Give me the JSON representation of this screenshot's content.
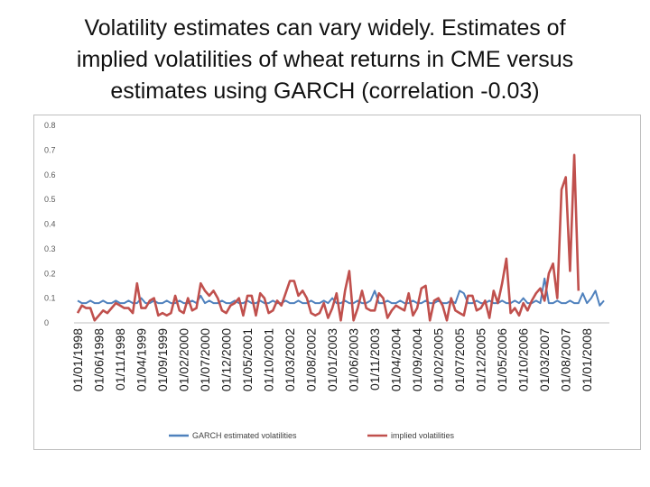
{
  "slide": {
    "title_lines": [
      "Volatility estimates can vary widely. Estimates of",
      "implied volatilities of wheat returns in  CME versus",
      "estimates using GARCH (correlation -0.03)"
    ]
  },
  "chart_data": {
    "type": "line",
    "title": "Volatility estimates can vary widely. Estimates of implied volatilities of wheat returns in  CME versus estimates using GARCH (correlation -0.03)",
    "xlabel": "",
    "ylabel": "",
    "ylim": [
      0,
      0.8
    ],
    "yticks": [
      0,
      0.1,
      0.2,
      0.3,
      0.4,
      0.5,
      0.6,
      0.7,
      0.8
    ],
    "ytick_labels": [
      "0",
      "0.1",
      "0.2",
      "0.3",
      "0.4",
      "0.5",
      "0.6",
      "0.7",
      "0.8"
    ],
    "grid": false,
    "legend_position": "bottom",
    "x_tick_labels": [
      "01/01/1998",
      "01/06/1998",
      "01/11/1998",
      "01/04/1999",
      "01/09/1999",
      "01/02/2000",
      "01/07/2000",
      "01/12/2000",
      "01/05/2001",
      "01/10/2001",
      "01/03/2002",
      "01/08/2002",
      "01/01/2003",
      "01/06/2003",
      "01/11/2003",
      "01/04/2004",
      "01/09/2004",
      "01/02/2005",
      "01/07/2005",
      "01/12/2005",
      "01/05/2006",
      "01/10/2006",
      "01/03/2007",
      "01/08/2007",
      "01/01/2008"
    ],
    "x_tick_index": [
      0,
      5,
      10,
      15,
      20,
      25,
      30,
      35,
      40,
      45,
      50,
      55,
      60,
      65,
      70,
      75,
      80,
      85,
      90,
      95,
      100,
      105,
      110,
      115,
      120
    ],
    "series": [
      {
        "name": "GARCH estimated volatilities",
        "color": "#4f81bd",
        "values": [
          0.09,
          0.08,
          0.08,
          0.09,
          0.08,
          0.08,
          0.09,
          0.08,
          0.08,
          0.09,
          0.08,
          0.08,
          0.09,
          0.08,
          0.08,
          0.1,
          0.08,
          0.08,
          0.09,
          0.08,
          0.08,
          0.09,
          0.08,
          0.08,
          0.09,
          0.08,
          0.08,
          0.09,
          0.08,
          0.11,
          0.08,
          0.09,
          0.08,
          0.08,
          0.09,
          0.08,
          0.08,
          0.09,
          0.08,
          0.08,
          0.09,
          0.08,
          0.08,
          0.09,
          0.08,
          0.08,
          0.09,
          0.08,
          0.08,
          0.09,
          0.08,
          0.08,
          0.09,
          0.08,
          0.08,
          0.09,
          0.08,
          0.08,
          0.09,
          0.08,
          0.1,
          0.08,
          0.08,
          0.09,
          0.08,
          0.08,
          0.09,
          0.08,
          0.08,
          0.09,
          0.13,
          0.08,
          0.08,
          0.09,
          0.08,
          0.08,
          0.09,
          0.08,
          0.08,
          0.09,
          0.08,
          0.08,
          0.09,
          0.08,
          0.08,
          0.09,
          0.08,
          0.08,
          0.09,
          0.08,
          0.13,
          0.12,
          0.08,
          0.08,
          0.09,
          0.08,
          0.08,
          0.09,
          0.08,
          0.08,
          0.09,
          0.08,
          0.08,
          0.09,
          0.08,
          0.1,
          0.08,
          0.08,
          0.09,
          0.08,
          0.18,
          0.08,
          0.08,
          0.09,
          0.08,
          0.08,
          0.09,
          0.08,
          0.08,
          0.12,
          0.08,
          0.1,
          0.13,
          0.07,
          0.09
        ]
      },
      {
        "name": "implied volatilities",
        "color": "#c0504d",
        "values": [
          0.04,
          0.07,
          0.06,
          0.06,
          0.01,
          0.03,
          0.05,
          0.04,
          0.06,
          0.08,
          0.07,
          0.06,
          0.06,
          0.04,
          0.16,
          0.06,
          0.06,
          0.09,
          0.1,
          0.03,
          0.04,
          0.03,
          0.04,
          0.11,
          0.05,
          0.04,
          0.1,
          0.05,
          0.06,
          0.16,
          0.13,
          0.11,
          0.13,
          0.1,
          0.05,
          0.04,
          0.07,
          0.08,
          0.1,
          0.03,
          0.11,
          0.11,
          0.03,
          0.12,
          0.1,
          0.04,
          0.05,
          0.09,
          0.07,
          0.12,
          0.17,
          0.17,
          0.11,
          0.13,
          0.1,
          0.04,
          0.03,
          0.04,
          0.08,
          0.02,
          0.06,
          0.12,
          0.01,
          0.13,
          0.21,
          0.01,
          0.06,
          0.13,
          0.06,
          0.05,
          0.05,
          0.12,
          0.1,
          0.02,
          0.05,
          0.07,
          0.06,
          0.05,
          0.12,
          0.03,
          0.06,
          0.14,
          0.15,
          0.01,
          0.09,
          0.1,
          0.07,
          0.01,
          0.1,
          0.05,
          0.04,
          0.03,
          0.11,
          0.11,
          0.05,
          0.06,
          0.09,
          0.02,
          0.13,
          0.08,
          0.16,
          0.26,
          0.04,
          0.06,
          0.03,
          0.08,
          0.05,
          0.09,
          0.12,
          0.14,
          0.09,
          0.2,
          0.24,
          0.1,
          0.54,
          0.59,
          0.21,
          0.68,
          0.13
        ]
      }
    ]
  }
}
